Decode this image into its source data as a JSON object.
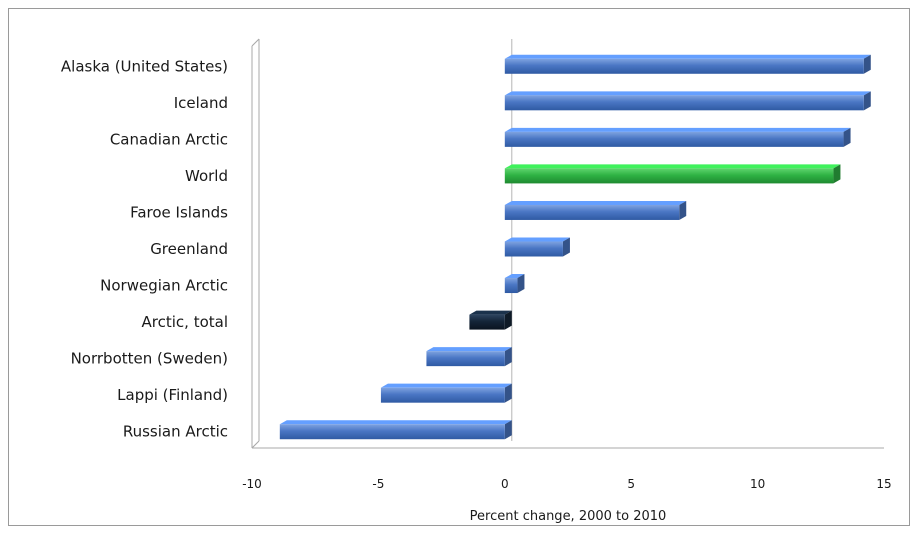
{
  "chart_data": {
    "type": "bar",
    "orientation": "horizontal",
    "categories": [
      "Alaska (United States)",
      "Iceland",
      "Canadian Arctic",
      "World",
      "Faroe Islands",
      "Greenland",
      "Norwegian Arctic",
      "Arctic, total",
      "Norrbotten (Sweden)",
      "Lappi (Finland)",
      "Russian Arctic"
    ],
    "values": [
      14.2,
      14.2,
      13.4,
      13.0,
      6.9,
      2.3,
      0.5,
      -1.4,
      -3.1,
      -4.9,
      -8.9
    ],
    "bar_colors": [
      "#4a76c4",
      "#4a76c4",
      "#4a76c4",
      "#2fb344",
      "#4a76c4",
      "#4a76c4",
      "#4a76c4",
      "#142538",
      "#4a76c4",
      "#4a76c4",
      "#4a76c4"
    ],
    "title": "",
    "xlabel": "Percent change, 2000 to 2010",
    "ylabel": "",
    "xlim": [
      -10,
      15
    ],
    "xticks": [
      "-10",
      "-5",
      "0",
      "5",
      "10",
      "15"
    ],
    "grid": false,
    "legend": "none"
  }
}
